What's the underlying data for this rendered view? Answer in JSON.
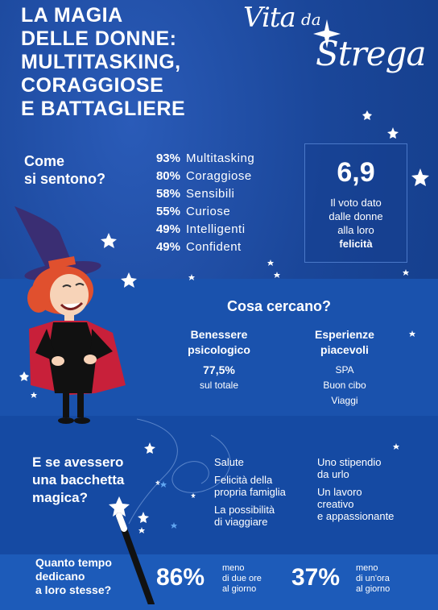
{
  "title": {
    "lines": [
      "LA MAGIA",
      "DELLE DONNE:",
      "MULTITASKING,",
      "CORAGGIOSE",
      "E BATTAGLIERE"
    ]
  },
  "logo": {
    "vita": "Vita",
    "da": "da",
    "strega": "Strega"
  },
  "feelings": {
    "question_line1": "Come",
    "question_line2": "si sentono?",
    "items": [
      {
        "pct": "93%",
        "label": "Multitasking"
      },
      {
        "pct": "80%",
        "label": "Coraggiose"
      },
      {
        "pct": "58%",
        "label": "Sensibili"
      },
      {
        "pct": "55%",
        "label": "Curiose"
      },
      {
        "pct": "49%",
        "label": "Intelligenti"
      },
      {
        "pct": "49%",
        "label": "Confident"
      }
    ]
  },
  "vote": {
    "value": "6,9",
    "line1": "Il voto dato",
    "line2": "dalle donne",
    "line3": "alla loro",
    "line4": "felicità"
  },
  "seek": {
    "question": "Cosa cercano?",
    "col1": {
      "title1": "Benessere",
      "title2": "psicologico",
      "value": "77,5%",
      "note": "sul totale"
    },
    "col2": {
      "title1": "Esperienze",
      "title2": "piacevoli",
      "items": [
        "SPA",
        "Buon cibo",
        "Viaggi"
      ]
    }
  },
  "wand": {
    "question_line1": "E se avessero",
    "question_line2": "una bacchetta",
    "question_line3": "magica?",
    "left": [
      {
        "l1": "Salute",
        "l2": ""
      },
      {
        "l1": "Felicità della",
        "l2": "propria famiglia"
      },
      {
        "l1": "La possibilità",
        "l2": "di viaggiare"
      }
    ],
    "right": [
      {
        "l1": "Uno stipendio",
        "l2": "da urlo",
        "l3": ""
      },
      {
        "l1": "Un lavoro",
        "l2": "creativo",
        "l3": "e appassionante"
      }
    ]
  },
  "time": {
    "question_line1": "Quanto tempo",
    "question_line2": "dedicano",
    "question_line3": "a loro stesse?",
    "stat1": {
      "pct": "86%",
      "l1": "meno",
      "l2": "di due ore",
      "l3": "al giorno"
    },
    "stat2": {
      "pct": "37%",
      "l1": "meno",
      "l2": "di un'ora",
      "l3": "al giorno"
    }
  },
  "colors": {
    "background": "#1a4699",
    "band": "#1a52ad",
    "hat": "#3a2e73",
    "hair": "#e0502e",
    "dress": "#111111",
    "cape_lining": "#c8203a",
    "skin": "#f7d3b8"
  }
}
